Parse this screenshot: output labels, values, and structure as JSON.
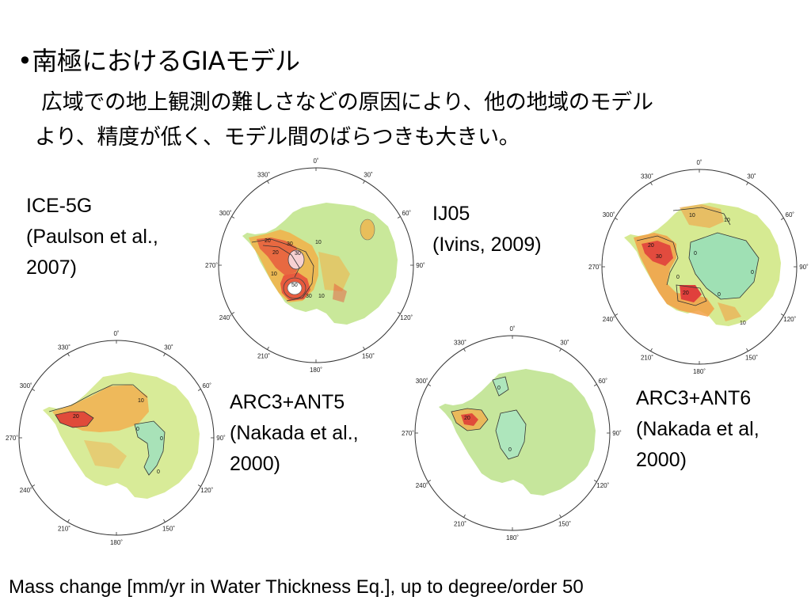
{
  "slide": {
    "title": "•南極におけるGIAモデル",
    "subtitle_line1": "広域での地上観測の難しさなどの原因により、他の地域のモデル",
    "subtitle_line2": "より、精度が低く、モデル間のばらつきも大きい。",
    "caption": "Mass change [mm/yr in Water Thickness Eq.], up to degree/order 50"
  },
  "degree_labels": [
    "0˚",
    "30˚",
    "60˚",
    "90˚",
    "120˚",
    "150˚",
    "180˚",
    "210˚",
    "240˚",
    "270˚",
    "300˚",
    "330˚"
  ],
  "models": [
    {
      "id": "ice5g",
      "label_line1": "ICE-5G",
      "label_line2": "(Paulson et al.,",
      "label_line3": "2007)",
      "contour_labels": [
        "10",
        "20",
        "30",
        "10",
        "20",
        "30",
        "50",
        "30",
        "10"
      ],
      "colors": {
        "base": "#c9e89a",
        "mid": "#f0b44c",
        "high": "#e85a3e",
        "peak": "#ffffff"
      }
    },
    {
      "id": "ij05",
      "label_line1": "IJ05",
      "label_line2": "(Ivins, 2009)",
      "contour_labels": [
        "10",
        "10",
        "20",
        "30",
        "0",
        "0",
        "0",
        "20",
        "0",
        "10"
      ],
      "colors": {
        "base": "#d6ea92",
        "mid": "#f2a046",
        "high": "#e0403c",
        "low": "#9fe0b4"
      }
    },
    {
      "id": "arc3ant5",
      "label_line1": "ARC3+ANT5",
      "label_line2": "(Nakada et al.,",
      "label_line3": "2000)",
      "contour_labels": [
        "20",
        "10",
        "0",
        "0",
        "0"
      ],
      "colors": {
        "base": "#d8eb98",
        "mid": "#f2b050",
        "high": "#e04a3a",
        "low": "#a8e2b8"
      }
    },
    {
      "id": "arc3ant6",
      "label_line1": "ARC3+ANT6",
      "label_line2": "(Nakada et al,",
      "label_line3": "2000)",
      "contour_labels": [
        "20",
        "0",
        "0"
      ],
      "colors": {
        "base": "#c6e69c",
        "mid": "#f0b050",
        "high": "#e04a3a",
        "low": "#aee6bc"
      }
    }
  ]
}
